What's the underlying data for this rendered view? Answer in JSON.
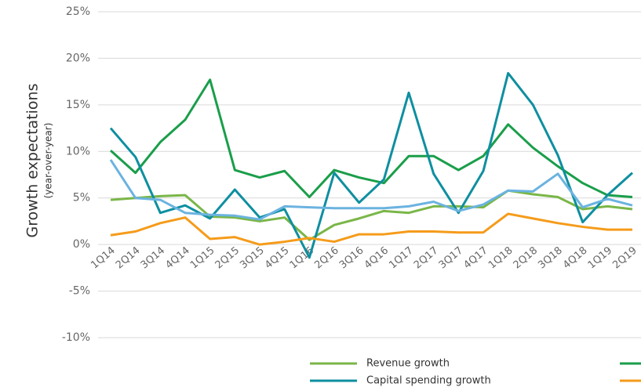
{
  "chart_data": {
    "type": "line",
    "y_axis_label": "Growth expectations",
    "y_axis_sublabel": "(year-over-year)",
    "categories": [
      "1Q14",
      "2Q14",
      "3Q14",
      "4Q14",
      "1Q15",
      "2Q15",
      "3Q15",
      "4Q15",
      "1Q16",
      "2Q16",
      "3Q16",
      "4Q16",
      "1Q17",
      "2Q17",
      "3Q17",
      "4Q17",
      "1Q18",
      "2Q18",
      "3Q18",
      "4Q18",
      "1Q19",
      "2Q19"
    ],
    "series": [
      {
        "name": "Revenue growth",
        "color": "#7ab648",
        "values": [
          4.8,
          5.0,
          5.2,
          5.3,
          3.0,
          2.9,
          2.5,
          2.9,
          0.5,
          2.1,
          2.8,
          3.6,
          3.4,
          4.1,
          4.1,
          4.0,
          5.8,
          5.4,
          5.1,
          3.8,
          4.1,
          3.8
        ]
      },
      {
        "color": "#1a9e4a",
        "values": [
          10.1,
          7.7,
          11.0,
          13.4,
          17.7,
          8.0,
          7.2,
          7.9,
          5.1,
          8.0,
          7.2,
          6.6,
          9.5,
          9.5,
          8.0,
          9.5,
          12.9,
          10.4,
          8.4,
          6.6,
          5.3,
          5.1
        ]
      },
      {
        "name": "Capital spending growth",
        "color": "#0e8fa0",
        "values": [
          12.5,
          9.4,
          3.4,
          4.2,
          2.8,
          5.9,
          2.9,
          3.8,
          -1.4,
          7.7,
          4.5,
          7.0,
          16.3,
          7.6,
          3.4,
          7.9,
          18.4,
          15.0,
          9.6,
          2.4,
          5.3,
          7.7
        ]
      },
      {
        "color": "#f59b1a",
        "values": [
          1.0,
          1.4,
          2.3,
          2.9,
          0.6,
          0.8,
          0.0,
          0.3,
          0.7,
          0.3,
          1.1,
          1.1,
          1.4,
          1.4,
          1.3,
          1.3,
          3.3,
          2.8,
          2.3,
          1.9,
          1.6,
          1.6
        ]
      },
      {
        "color": "#6bb3e0",
        "in_legend": false,
        "values": [
          9.1,
          5.0,
          4.8,
          3.4,
          3.2,
          3.1,
          2.7,
          4.1,
          4.0,
          3.9,
          3.9,
          3.9,
          4.1,
          4.6,
          3.6,
          4.3,
          5.8,
          5.7,
          7.6,
          4.0,
          4.9,
          4.2
        ]
      }
    ],
    "ylim": [
      -10,
      25
    ],
    "yticks": [
      {
        "value": -10,
        "label": "-10%"
      },
      {
        "value": -5,
        "label": "-5%"
      },
      {
        "value": 0,
        "label": "0%"
      },
      {
        "value": 5,
        "label": "5%"
      },
      {
        "value": 10,
        "label": "10%"
      },
      {
        "value": 15,
        "label": "15%"
      },
      {
        "value": 20,
        "label": "20%"
      },
      {
        "value": 25,
        "label": "25%"
      }
    ],
    "grid": true
  }
}
